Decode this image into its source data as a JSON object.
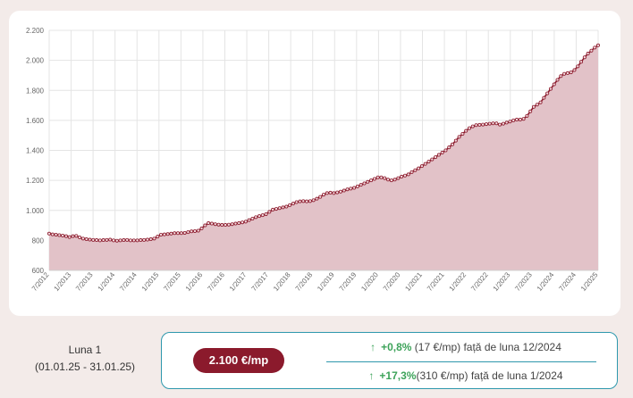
{
  "chart_data": {
    "type": "area",
    "ylim": [
      600,
      2200
    ],
    "y_ticks": [
      600,
      800,
      1000,
      1200,
      1400,
      1600,
      1800,
      2000,
      2200
    ],
    "y_tick_labels": [
      "600",
      "800",
      "1.000",
      "1.200",
      "1.400",
      "1.600",
      "1.800",
      "2.000",
      "2.200"
    ],
    "x_tick_labels": [
      "7/2012",
      "1/2013",
      "7/2013",
      "1/2014",
      "7/2014",
      "1/2015",
      "7/2015",
      "1/2016",
      "7/2016",
      "1/2017",
      "7/2017",
      "1/2018",
      "7/2018",
      "1/2019",
      "7/2019",
      "1/2020",
      "7/2020",
      "1/2021",
      "7/2021",
      "1/2022",
      "7/2022",
      "1/2023",
      "7/2023",
      "1/2024",
      "7/2024",
      "1/2025"
    ],
    "grid": true,
    "colors": {
      "line": "#8b1a2c",
      "fill": "#e2c2c8",
      "marker_fill": "#f4dde1"
    },
    "series": [
      {
        "values": [
          845,
          840,
          838,
          835,
          832,
          828,
          822,
          828,
          830,
          820,
          812,
          808,
          805,
          803,
          802,
          800,
          802,
          803,
          805,
          800,
          798,
          800,
          802,
          803,
          800,
          800,
          800,
          802,
          803,
          805,
          808,
          812,
          825,
          838,
          840,
          842,
          845,
          848,
          848,
          848,
          850,
          855,
          860,
          862,
          865,
          880,
          900,
          915,
          912,
          908,
          905,
          903,
          903,
          905,
          908,
          912,
          915,
          920,
          925,
          935,
          945,
          955,
          962,
          968,
          975,
          990,
          1005,
          1010,
          1015,
          1020,
          1025,
          1035,
          1045,
          1055,
          1060,
          1062,
          1060,
          1062,
          1068,
          1078,
          1090,
          1105,
          1115,
          1118,
          1115,
          1120,
          1125,
          1132,
          1140,
          1145,
          1150,
          1160,
          1170,
          1180,
          1190,
          1200,
          1210,
          1220,
          1220,
          1215,
          1205,
          1200,
          1205,
          1215,
          1225,
          1232,
          1240,
          1255,
          1268,
          1280,
          1295,
          1310,
          1325,
          1340,
          1355,
          1370,
          1385,
          1400,
          1420,
          1440,
          1465,
          1490,
          1510,
          1530,
          1548,
          1560,
          1568,
          1570,
          1572,
          1575,
          1578,
          1580,
          1580,
          1572,
          1578,
          1585,
          1592,
          1600,
          1605,
          1605,
          1610,
          1630,
          1660,
          1690,
          1705,
          1720,
          1750,
          1780,
          1810,
          1840,
          1870,
          1895,
          1910,
          1915,
          1920,
          1935,
          1960,
          1990,
          2020,
          2045,
          2065,
          2085,
          2100
        ]
      }
    ]
  },
  "period": {
    "title": "Luna 1",
    "range": "(01.01.25 - 31.01.25)"
  },
  "summary": {
    "price": "2.100 €/mp",
    "monthly_change": {
      "arrow": "↑",
      "pct": "+0,8%",
      "detail": "(17 €/mp) față de luna 12/2024"
    },
    "yearly_change": {
      "arrow": "↑",
      "pct": "+17,3%",
      "detail": "(310 €/mp) față de luna 1/2024"
    }
  }
}
